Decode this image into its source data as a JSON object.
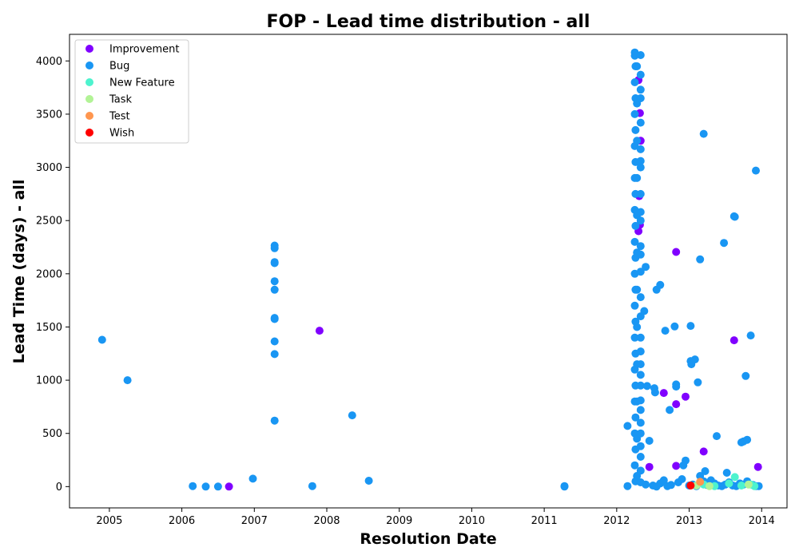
{
  "chart_data": {
    "type": "scatter",
    "title": "FOP - Lead time distribution - all",
    "xlabel": "Resolution Date",
    "ylabel": "Lead Time (days) - all",
    "xlim": [
      2004.45,
      2014.35
    ],
    "ylim": [
      -200,
      4250
    ],
    "x_ticks": [
      2005,
      2006,
      2007,
      2008,
      2009,
      2010,
      2011,
      2012,
      2013,
      2014
    ],
    "y_ticks": [
      0,
      500,
      1000,
      1500,
      2000,
      2500,
      3000,
      3500,
      4000
    ],
    "grid": false,
    "legend_position": "top-left",
    "series": [
      {
        "name": "Improvement",
        "color": "#8000ff",
        "points": [
          [
            2006.65,
            0
          ],
          [
            2007.9,
            1465
          ],
          [
            2012.3,
            3820
          ],
          [
            2012.32,
            3510
          ],
          [
            2012.33,
            3250
          ],
          [
            2012.31,
            2730
          ],
          [
            2012.32,
            2460
          ],
          [
            2012.3,
            2400
          ],
          [
            2012.65,
            880
          ],
          [
            2012.82,
            2205
          ],
          [
            2012.95,
            845
          ],
          [
            2012.82,
            775
          ],
          [
            2013.2,
            330
          ],
          [
            2013.62,
            1375
          ],
          [
            2012.45,
            185
          ],
          [
            2012.82,
            195
          ],
          [
            2013.95,
            185
          ]
        ]
      },
      {
        "name": "Bug",
        "color": "#1996f3",
        "points": [
          [
            2004.9,
            1380
          ],
          [
            2005.25,
            1000
          ],
          [
            2006.15,
            5
          ],
          [
            2006.33,
            0
          ],
          [
            2006.5,
            0
          ],
          [
            2006.98,
            75
          ],
          [
            2007.28,
            2265
          ],
          [
            2007.28,
            2240
          ],
          [
            2007.28,
            2110
          ],
          [
            2007.28,
            2100
          ],
          [
            2007.28,
            1930
          ],
          [
            2007.28,
            1850
          ],
          [
            2007.28,
            1585
          ],
          [
            2007.28,
            1575
          ],
          [
            2007.28,
            1365
          ],
          [
            2007.28,
            1245
          ],
          [
            2007.28,
            620
          ],
          [
            2007.8,
            5
          ],
          [
            2008.35,
            670
          ],
          [
            2008.58,
            55
          ],
          [
            2011.28,
            5
          ],
          [
            2011.28,
            0
          ],
          [
            2012.15,
            5
          ],
          [
            2012.15,
            570
          ],
          [
            2012.25,
            4080
          ],
          [
            2012.25,
            4050
          ],
          [
            2012.26,
            3950
          ],
          [
            2012.25,
            3800
          ],
          [
            2012.26,
            3650
          ],
          [
            2012.25,
            3500
          ],
          [
            2012.26,
            3350
          ],
          [
            2012.25,
            3200
          ],
          [
            2012.26,
            3050
          ],
          [
            2012.25,
            2900
          ],
          [
            2012.26,
            2750
          ],
          [
            2012.25,
            2600
          ],
          [
            2012.26,
            2450
          ],
          [
            2012.25,
            2300
          ],
          [
            2012.26,
            2150
          ],
          [
            2012.25,
            2000
          ],
          [
            2012.26,
            1850
          ],
          [
            2012.25,
            1700
          ],
          [
            2012.26,
            1550
          ],
          [
            2012.25,
            1400
          ],
          [
            2012.26,
            1250
          ],
          [
            2012.25,
            1100
          ],
          [
            2012.26,
            950
          ],
          [
            2012.25,
            800
          ],
          [
            2012.26,
            650
          ],
          [
            2012.25,
            500
          ],
          [
            2012.26,
            350
          ],
          [
            2012.25,
            200
          ],
          [
            2012.26,
            50
          ],
          [
            2012.28,
            3950
          ],
          [
            2012.28,
            3600
          ],
          [
            2012.28,
            3250
          ],
          [
            2012.28,
            2900
          ],
          [
            2012.28,
            2550
          ],
          [
            2012.28,
            2200
          ],
          [
            2012.28,
            1850
          ],
          [
            2012.28,
            1500
          ],
          [
            2012.28,
            1150
          ],
          [
            2012.28,
            800
          ],
          [
            2012.28,
            450
          ],
          [
            2012.28,
            100
          ],
          [
            2012.33,
            4055
          ],
          [
            2012.33,
            3870
          ],
          [
            2012.33,
            3730
          ],
          [
            2012.33,
            3650
          ],
          [
            2012.33,
            3420
          ],
          [
            2012.33,
            3170
          ],
          [
            2012.33,
            3060
          ],
          [
            2012.33,
            3000
          ],
          [
            2012.33,
            2750
          ],
          [
            2012.33,
            2580
          ],
          [
            2012.33,
            2500
          ],
          [
            2012.33,
            2260
          ],
          [
            2012.33,
            2180
          ],
          [
            2012.33,
            2020
          ],
          [
            2012.33,
            1780
          ],
          [
            2012.33,
            1600
          ],
          [
            2012.33,
            1400
          ],
          [
            2012.33,
            1270
          ],
          [
            2012.33,
            1150
          ],
          [
            2012.33,
            1050
          ],
          [
            2012.33,
            950
          ],
          [
            2012.33,
            810
          ],
          [
            2012.33,
            720
          ],
          [
            2012.33,
            600
          ],
          [
            2012.33,
            500
          ],
          [
            2012.33,
            380
          ],
          [
            2012.33,
            280
          ],
          [
            2012.33,
            150
          ],
          [
            2012.33,
            40
          ],
          [
            2012.38,
            1650
          ],
          [
            2012.4,
            2065
          ],
          [
            2012.42,
            945
          ],
          [
            2012.45,
            430
          ],
          [
            2012.52,
            925
          ],
          [
            2012.53,
            885
          ],
          [
            2012.55,
            1850
          ],
          [
            2012.6,
            1895
          ],
          [
            2012.67,
            1465
          ],
          [
            2012.73,
            720
          ],
          [
            2012.8,
            1505
          ],
          [
            2012.82,
            960
          ],
          [
            2012.82,
            940
          ],
          [
            2012.92,
            200
          ],
          [
            2012.95,
            245
          ],
          [
            2013.02,
            1510
          ],
          [
            2013.02,
            1180
          ],
          [
            2013.03,
            1150
          ],
          [
            2013.08,
            1195
          ],
          [
            2013.12,
            980
          ],
          [
            2013.15,
            2135
          ],
          [
            2013.2,
            3315
          ],
          [
            2013.22,
            145
          ],
          [
            2013.38,
            475
          ],
          [
            2013.48,
            2290
          ],
          [
            2013.52,
            130
          ],
          [
            2013.62,
            2540
          ],
          [
            2013.63,
            2535
          ],
          [
            2013.72,
            415
          ],
          [
            2013.75,
            425
          ],
          [
            2013.78,
            1040
          ],
          [
            2013.8,
            440
          ],
          [
            2013.85,
            1420
          ],
          [
            2013.92,
            2970
          ],
          [
            2012.4,
            20
          ],
          [
            2012.5,
            10
          ],
          [
            2012.55,
            0
          ],
          [
            2012.6,
            30
          ],
          [
            2012.65,
            60
          ],
          [
            2012.7,
            5
          ],
          [
            2012.75,
            15
          ],
          [
            2012.85,
            40
          ],
          [
            2012.9,
            70
          ],
          [
            2013.0,
            10
          ],
          [
            2013.05,
            20
          ],
          [
            2013.1,
            5
          ],
          [
            2013.15,
            100
          ],
          [
            2013.2,
            50
          ],
          [
            2013.25,
            15
          ],
          [
            2013.3,
            60
          ],
          [
            2013.35,
            30
          ],
          [
            2013.4,
            10
          ],
          [
            2013.45,
            5
          ],
          [
            2013.5,
            20
          ],
          [
            2013.55,
            40
          ],
          [
            2013.6,
            10
          ],
          [
            2013.65,
            5
          ],
          [
            2013.7,
            30
          ],
          [
            2013.75,
            20
          ],
          [
            2013.8,
            50
          ],
          [
            2013.88,
            15
          ],
          [
            2013.92,
            5
          ],
          [
            2013.96,
            5
          ]
        ]
      },
      {
        "name": "New Feature",
        "color": "#4df3ce",
        "points": [
          [
            2013.2,
            20
          ],
          [
            2013.35,
            5
          ],
          [
            2013.55,
            30
          ],
          [
            2013.63,
            90
          ],
          [
            2013.72,
            10
          ],
          [
            2013.85,
            20
          ],
          [
            2013.9,
            5
          ]
        ]
      },
      {
        "name": "Task",
        "color": "#b2f396",
        "points": [
          [
            2013.1,
            10
          ],
          [
            2013.28,
            5
          ],
          [
            2013.82,
            20
          ]
        ]
      },
      {
        "name": "Test",
        "color": "#ff964f",
        "points": [
          [
            2013.15,
            45
          ]
        ]
      },
      {
        "name": "Wish",
        "color": "#ff0000",
        "points": [
          [
            2013.02,
            10
          ]
        ]
      }
    ]
  }
}
